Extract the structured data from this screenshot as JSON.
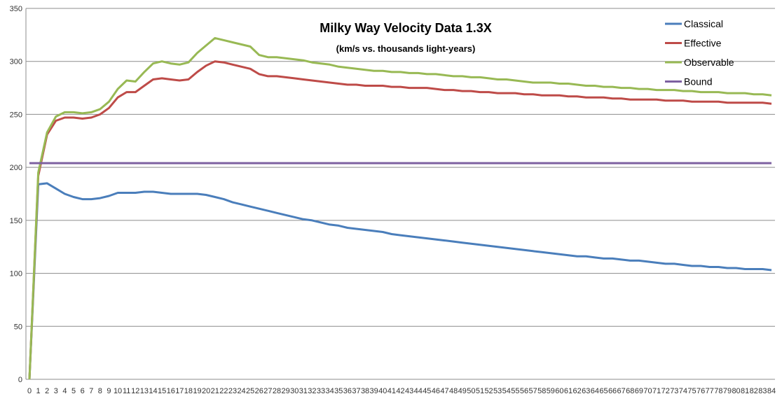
{
  "chart_data": {
    "type": "line",
    "title": "Milky Way Velocity Data 1.3X",
    "subtitle": "(km/s vs. thousands light-years)",
    "xlabel": "",
    "ylabel": "",
    "ylim": [
      0,
      350
    ],
    "yticks": [
      0,
      50,
      100,
      150,
      200,
      250,
      300,
      350
    ],
    "grid": true,
    "legend_position": "top-right",
    "x": [
      0,
      1,
      2,
      3,
      4,
      5,
      6,
      7,
      8,
      9,
      10,
      11,
      12,
      13,
      14,
      15,
      16,
      17,
      18,
      19,
      20,
      21,
      22,
      23,
      24,
      25,
      26,
      27,
      28,
      29,
      30,
      31,
      32,
      33,
      34,
      35,
      36,
      37,
      38,
      39,
      40,
      41,
      42,
      43,
      44,
      45,
      46,
      47,
      48,
      49,
      50,
      51,
      52,
      53,
      54,
      55,
      56,
      57,
      58,
      59,
      60,
      61,
      62,
      63,
      64,
      65,
      66,
      67,
      68,
      69,
      70,
      71,
      72,
      73,
      74,
      75,
      76,
      77,
      78,
      79,
      80,
      81,
      82,
      83,
      84
    ],
    "series": [
      {
        "name": "Classical",
        "color": "#4a7ebb",
        "values": [
          0,
          184,
          185,
          180,
          175,
          172,
          170,
          170,
          171,
          173,
          176,
          176,
          176,
          177,
          177,
          176,
          175,
          175,
          175,
          175,
          174,
          172,
          170,
          167,
          165,
          163,
          161,
          159,
          157,
          155,
          153,
          151,
          150,
          148,
          146,
          145,
          143,
          142,
          141,
          140,
          139,
          137,
          136,
          135,
          134,
          133,
          132,
          131,
          130,
          129,
          128,
          127,
          126,
          125,
          124,
          123,
          122,
          121,
          120,
          119,
          118,
          117,
          116,
          116,
          115,
          114,
          114,
          113,
          112,
          112,
          111,
          110,
          109,
          109,
          108,
          107,
          107,
          106,
          106,
          105,
          105,
          104,
          104,
          104,
          103
        ]
      },
      {
        "name": "Effective",
        "color": "#be4b48",
        "values": [
          0,
          192,
          231,
          244,
          247,
          247,
          246,
          247,
          250,
          256,
          266,
          271,
          271,
          277,
          283,
          284,
          283,
          282,
          283,
          290,
          296,
          300,
          299,
          297,
          295,
          293,
          288,
          286,
          286,
          285,
          284,
          283,
          282,
          281,
          280,
          279,
          278,
          278,
          277,
          277,
          277,
          276,
          276,
          275,
          275,
          275,
          274,
          273,
          273,
          272,
          272,
          271,
          271,
          270,
          270,
          270,
          269,
          269,
          268,
          268,
          268,
          267,
          267,
          266,
          266,
          266,
          265,
          265,
          264,
          264,
          264,
          264,
          263,
          263,
          263,
          262,
          262,
          262,
          262,
          261,
          261,
          261,
          261,
          261,
          260
        ]
      },
      {
        "name": "Observable",
        "color": "#98b954",
        "values": [
          0,
          195,
          233,
          248,
          252,
          252,
          251,
          252,
          255,
          262,
          274,
          282,
          281,
          290,
          298,
          300,
          298,
          297,
          299,
          308,
          315,
          322,
          320,
          318,
          316,
          314,
          306,
          304,
          304,
          303,
          302,
          301,
          299,
          298,
          297,
          295,
          294,
          293,
          292,
          291,
          291,
          290,
          290,
          289,
          289,
          288,
          288,
          287,
          286,
          286,
          285,
          285,
          284,
          283,
          283,
          282,
          281,
          280,
          280,
          280,
          279,
          279,
          278,
          277,
          277,
          276,
          276,
          275,
          275,
          274,
          274,
          273,
          273,
          273,
          272,
          272,
          271,
          271,
          271,
          270,
          270,
          270,
          269,
          269,
          268
        ]
      },
      {
        "name": "Bound",
        "color": "#7d60a0",
        "values": [
          204,
          204,
          204,
          204,
          204,
          204,
          204,
          204,
          204,
          204,
          204,
          204,
          204,
          204,
          204,
          204,
          204,
          204,
          204,
          204,
          204,
          204,
          204,
          204,
          204,
          204,
          204,
          204,
          204,
          204,
          204,
          204,
          204,
          204,
          204,
          204,
          204,
          204,
          204,
          204,
          204,
          204,
          204,
          204,
          204,
          204,
          204,
          204,
          204,
          204,
          204,
          204,
          204,
          204,
          204,
          204,
          204,
          204,
          204,
          204,
          204,
          204,
          204,
          204,
          204,
          204,
          204,
          204,
          204,
          204,
          204,
          204,
          204,
          204,
          204,
          204,
          204,
          204,
          204,
          204,
          204,
          204,
          204,
          204,
          204
        ]
      }
    ]
  }
}
